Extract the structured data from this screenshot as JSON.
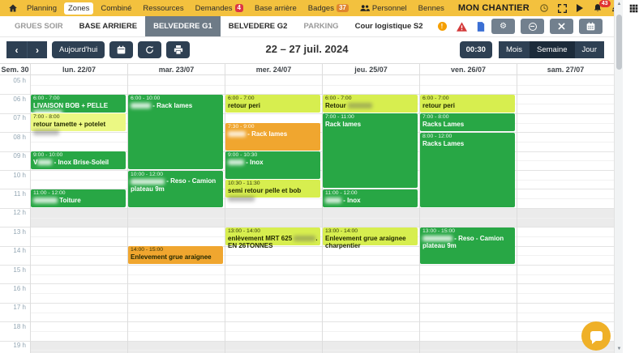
{
  "app": {
    "title": "MON CHANTIER",
    "notification_count": "43"
  },
  "menu": {
    "items": [
      {
        "label": "Planning"
      },
      {
        "label": "Zones",
        "active": true
      },
      {
        "label": "Combiné"
      },
      {
        "label": "Ressources"
      },
      {
        "label": "Demandes",
        "badge": "4",
        "badge_color": "#dc3545"
      },
      {
        "label": "Base arrière"
      },
      {
        "label": "Badges",
        "badge": "37",
        "badge_color": "#e0862d"
      },
      {
        "label": "Personnel",
        "icon": "people"
      },
      {
        "label": "Bennes"
      }
    ]
  },
  "zones_tabs": {
    "items": [
      {
        "label": "GRUES SOIR",
        "style": "muted"
      },
      {
        "label": "BASE ARRIERE",
        "style": "bold"
      },
      {
        "label": "BELVEDERE G1",
        "style": "active"
      },
      {
        "label": "BELVEDERE G2",
        "style": "bold"
      },
      {
        "label": "PARKING",
        "style": "muted"
      },
      {
        "label": "Cour logistique S2",
        "style": "bold"
      }
    ],
    "alert_label": "!"
  },
  "toolbar": {
    "today_label": "Aujourd'hui",
    "title": "22 – 27 juil. 2024",
    "slot_label": "00:30",
    "views": [
      {
        "label": "Mois"
      },
      {
        "label": "Semaine",
        "active": true
      },
      {
        "label": "Jour"
      }
    ]
  },
  "calendar": {
    "week_label": "Sem. 30",
    "days": [
      "lun. 22/07",
      "mar. 23/07",
      "mer. 24/07",
      "jeu. 25/07",
      "ven. 26/07",
      "sam. 27/07"
    ],
    "hour_labels": [
      "05 h",
      "06 h",
      "07 h",
      "08 h",
      "09 h",
      "10 h",
      "11 h",
      "12 h",
      "13 h",
      "14 h",
      "15 h",
      "16 h",
      "17 h",
      "18 h",
      "19 h"
    ],
    "colors": {
      "green": "#28a745",
      "lime": "#d7ee4f",
      "pale_lime": "#ebf883",
      "orange": "#f0a62f"
    },
    "events": [
      {
        "day": 0,
        "start": 6,
        "end": 7,
        "color": "green",
        "fg": "light",
        "time": "6:00 - 7:00",
        "segments": [
          {
            "t": "LIVAISON BOB + PELLE "
          },
          {
            "b": 36
          }
        ]
      },
      {
        "day": 0,
        "start": 7,
        "end": 8,
        "color": "pale_lime",
        "fg": "dark",
        "time": "7:00 - 8:00",
        "segments": [
          {
            "t": "retour tamette + potelet"
          },
          {
            "b": 32
          }
        ]
      },
      {
        "day": 0,
        "start": 9,
        "end": 10,
        "color": "green",
        "fg": "light",
        "time": "9:00 - 10:00",
        "segments": [
          {
            "t": "V"
          },
          {
            "b": 18
          },
          {
            "t": " - Inox Brise-Soleil"
          }
        ]
      },
      {
        "day": 0,
        "start": 11,
        "end": 12,
        "color": "green",
        "fg": "light",
        "time": "11:00 - 12:00",
        "segments": [
          {
            "b": 30
          },
          {
            "t": " Toiture"
          }
        ]
      },
      {
        "day": 1,
        "start": 6,
        "end": 10,
        "color": "green",
        "fg": "light",
        "time": "6:00 - 10:00",
        "segments": [
          {
            "b": 25
          },
          {
            "t": " - Rack lames"
          }
        ]
      },
      {
        "day": 1,
        "start": 10,
        "end": 12,
        "color": "green",
        "fg": "light",
        "time": "10:00 - 12:00",
        "segments": [
          {
            "b": 42
          },
          {
            "t": " - Reso - Camion plateau 9m"
          }
        ]
      },
      {
        "day": 1,
        "start": 14,
        "end": 15,
        "color": "orange",
        "fg": "dark",
        "time": "14:00 - 15:00",
        "segments": [
          {
            "t": "Enlevement grue araignee"
          }
        ]
      },
      {
        "day": 2,
        "start": 6,
        "end": 7,
        "color": "lime",
        "fg": "dark",
        "time": "6:00 - 7:00",
        "segments": [
          {
            "t": "retour peri"
          }
        ]
      },
      {
        "day": 2,
        "start": 7.5,
        "end": 9,
        "color": "orange",
        "fg": "light",
        "time": "7:30 - 9:00",
        "segments": [
          {
            "b": 22
          },
          {
            "t": " - Rack lames"
          }
        ]
      },
      {
        "day": 2,
        "start": 9,
        "end": 10.5,
        "color": "green",
        "fg": "light",
        "time": "9:00 - 10:30",
        "segments": [
          {
            "b": 20
          },
          {
            "t": " - Inox"
          }
        ]
      },
      {
        "day": 2,
        "start": 10.5,
        "end": 11.5,
        "color": "lime",
        "fg": "dark",
        "time": "10:30 - 11:30",
        "segments": [
          {
            "t": "semi retour pelle et bob "
          },
          {
            "b": 33
          }
        ]
      },
      {
        "day": 2,
        "start": 13,
        "end": 14,
        "color": "lime",
        "fg": "dark",
        "time": "13:00 - 14:00",
        "segments": [
          {
            "t": "enlèvement MRT 625 "
          },
          {
            "b": 27
          },
          {
            "t": ". EN 26TONNES"
          }
        ]
      },
      {
        "day": 3,
        "start": 6,
        "end": 7,
        "color": "lime",
        "fg": "dark",
        "time": "6:00 - 7:00",
        "segments": [
          {
            "t": "Retour "
          },
          {
            "b": 30
          }
        ]
      },
      {
        "day": 3,
        "start": 7,
        "end": 11,
        "color": "green",
        "fg": "light",
        "time": "7:00 - 11:00",
        "segments": [
          {
            "t": "Rack lames"
          }
        ]
      },
      {
        "day": 3,
        "start": 11,
        "end": 12,
        "color": "green",
        "fg": "light",
        "time": "11:00 - 12:00",
        "segments": [
          {
            "b": 20
          },
          {
            "t": " - Inox"
          }
        ]
      },
      {
        "day": 3,
        "start": 13,
        "end": 14,
        "color": "lime",
        "fg": "dark",
        "time": "13:00 - 14:00",
        "segments": [
          {
            "t": "Enlevement grue araignee charpentier"
          }
        ]
      },
      {
        "day": 4,
        "start": 6,
        "end": 7,
        "color": "lime",
        "fg": "dark",
        "time": "6:00 - 7:00",
        "segments": [
          {
            "t": "retour peri"
          }
        ]
      },
      {
        "day": 4,
        "start": 7,
        "end": 8,
        "color": "green",
        "fg": "light",
        "time": "7:00 - 8:00",
        "segments": [
          {
            "t": "Racks Lames"
          }
        ]
      },
      {
        "day": 4,
        "start": 8,
        "end": 12,
        "color": "green",
        "fg": "light",
        "time": "8:00 - 12:00",
        "segments": [
          {
            "t": "Racks Lames"
          }
        ]
      },
      {
        "day": 4,
        "start": 13,
        "end": 15,
        "color": "green",
        "fg": "light",
        "time": "13:00 - 15:00",
        "segments": [
          {
            "b": 37
          },
          {
            "t": " - Reso - Camion plateau 9m"
          }
        ]
      }
    ]
  }
}
